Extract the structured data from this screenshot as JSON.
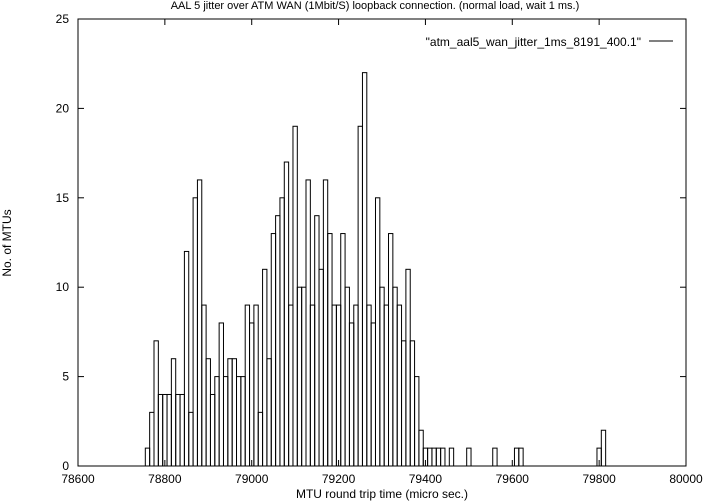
{
  "chart_data": {
    "type": "bar",
    "style": "histogram-steps",
    "title": "AAL 5 jitter over ATM WAN (1Mbit/S) loopback connection. (normal load, wait 1 ms.)",
    "xlabel": "MTU round trip time (micro sec.)",
    "ylabel": "No. of MTUs",
    "xlim": [
      78600,
      80000
    ],
    "ylim": [
      0,
      25
    ],
    "xticks": [
      78600,
      78800,
      79000,
      79200,
      79400,
      79600,
      79800,
      80000
    ],
    "yticks": [
      0,
      5,
      10,
      15,
      20,
      25
    ],
    "bin_width": 10,
    "grid": false,
    "legend_position": "top-right",
    "series": [
      {
        "name": "\"atm_aal5_wan_jitter_1ms_8191_400.1\"",
        "color": "#000000",
        "x": [
          78760,
          78770,
          78780,
          78790,
          78800,
          78810,
          78820,
          78830,
          78840,
          78850,
          78860,
          78870,
          78880,
          78890,
          78900,
          78910,
          78920,
          78930,
          78940,
          78950,
          78960,
          78970,
          78980,
          78990,
          79000,
          79010,
          79020,
          79030,
          79040,
          79050,
          79060,
          79070,
          79080,
          79090,
          79100,
          79110,
          79120,
          79130,
          79140,
          79150,
          79160,
          79170,
          79180,
          79190,
          79200,
          79210,
          79220,
          79230,
          79240,
          79250,
          79260,
          79270,
          79280,
          79290,
          79300,
          79310,
          79320,
          79330,
          79340,
          79350,
          79360,
          79370,
          79380,
          79390,
          79400,
          79410,
          79420,
          79430,
          79440,
          79460,
          79500,
          79560,
          79610,
          79620,
          79800,
          79810
        ],
        "values": [
          1,
          3,
          7,
          4,
          4,
          4,
          6,
          4,
          4,
          12,
          3,
          15,
          16,
          9,
          6,
          4,
          5,
          8,
          5,
          6,
          6,
          5,
          5,
          9,
          8,
          9,
          3,
          11,
          6,
          13,
          14,
          15,
          17,
          9,
          19,
          10,
          10,
          16,
          9,
          14,
          11,
          16,
          13,
          9,
          9,
          13,
          10,
          8,
          9,
          19,
          22,
          9,
          8,
          15,
          10,
          9,
          13,
          10,
          9,
          7,
          11,
          7,
          5,
          2,
          1,
          1,
          1,
          1,
          1,
          1,
          1,
          1,
          1,
          1,
          1,
          2
        ]
      }
    ]
  }
}
